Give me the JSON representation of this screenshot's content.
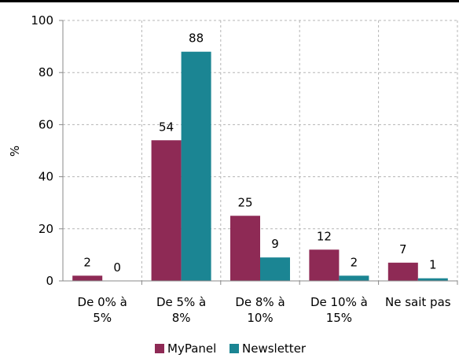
{
  "chart_data": {
    "type": "bar",
    "categories": [
      [
        "De 0% à",
        "5%"
      ],
      [
        "De 5% à",
        "8%"
      ],
      [
        "De 8% à",
        "10%"
      ],
      [
        "De 10% à",
        "15%"
      ],
      [
        "Ne sait pas"
      ]
    ],
    "series": [
      {
        "name": "MyPanel",
        "values": [
          2,
          54,
          25,
          12,
          7
        ],
        "labels": [
          "2",
          "54",
          "25",
          "12",
          "7"
        ],
        "color": "#8e2a55"
      },
      {
        "name": "Newsletter",
        "values": [
          0,
          88,
          9,
          2,
          1
        ],
        "labels": [
          "0",
          "88",
          "9",
          "2",
          "1"
        ],
        "color": "#1b8593"
      }
    ],
    "ylabel": "%",
    "ylim": [
      0,
      100
    ],
    "yticks": [
      "0",
      "20",
      "40",
      "60",
      "80",
      "100"
    ],
    "grid": true,
    "legend": "bottom"
  }
}
